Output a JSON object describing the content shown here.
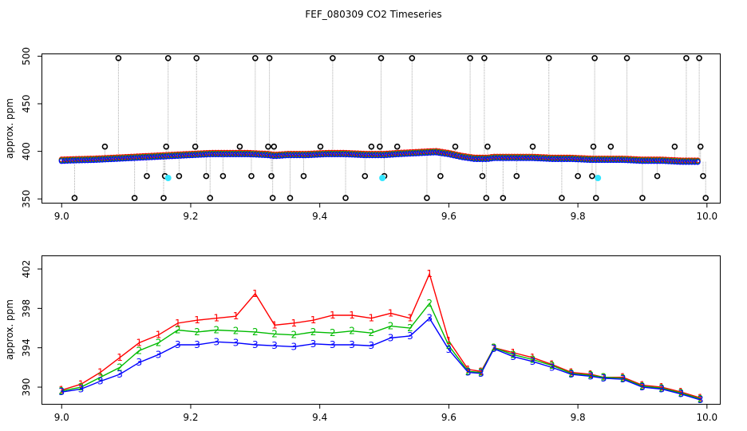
{
  "title": "FEF_080309  CO2 Timeseries",
  "colors": {
    "series1": "#ff0000",
    "series2": "#00bb00",
    "series3": "#0000ff",
    "flag": "#000000",
    "cyan": "#33e6ff",
    "connector": "#aaaaaa"
  },
  "chart_data": [
    {
      "type": "scatter",
      "xlabel": "",
      "ylabel": "approx. ppm",
      "xlim": [
        8.97,
        10.02
      ],
      "ylim": [
        346,
        502
      ],
      "xticks": [
        9.0,
        9.2,
        9.4,
        9.6,
        9.8,
        10.0
      ],
      "xtick_labels": [
        "9.0",
        "9.2",
        "9.4",
        "9.6",
        "9.8",
        "10.0"
      ],
      "yticks": [
        350,
        400,
        450,
        500
      ],
      "ytick_labels": [
        "350",
        "400",
        "450",
        "500"
      ],
      "grid": false,
      "series": [
        {
          "style": "baseline",
          "x": [
            9.0,
            9.02,
            9.05,
            9.08,
            9.11,
            9.14,
            9.17,
            9.2,
            9.23,
            9.26,
            9.29,
            9.32,
            9.33,
            9.35,
            9.38,
            9.41,
            9.44,
            9.47,
            9.49,
            9.5,
            9.52,
            9.55,
            9.58,
            9.6,
            9.62,
            9.64,
            9.66,
            9.67,
            9.7,
            9.73,
            9.76,
            9.79,
            9.82,
            9.84,
            9.87,
            9.9,
            9.93,
            9.96,
            9.99
          ],
          "y": [
            390,
            390.5,
            391,
            392,
            393,
            394,
            395,
            396,
            397,
            397,
            397,
            396,
            395,
            396,
            396,
            397,
            397,
            396,
            396,
            396,
            397,
            398,
            399,
            397,
            394,
            392,
            392,
            393,
            393,
            393,
            392,
            392,
            391,
            391,
            391,
            390,
            390,
            389,
            389
          ]
        },
        {
          "style": "flag",
          "x": [
            9.02,
            9.067,
            9.088,
            9.113,
            9.132,
            9.158,
            9.16,
            9.162,
            9.165,
            9.182,
            9.207,
            9.209,
            9.224,
            9.23,
            9.25,
            9.276,
            9.294,
            9.3,
            9.32,
            9.322,
            9.325,
            9.327,
            9.329,
            9.354,
            9.375,
            9.401,
            9.42,
            9.44,
            9.47,
            9.48,
            9.493,
            9.495,
            9.5,
            9.52,
            9.543,
            9.566,
            9.587,
            9.61,
            9.633,
            9.652,
            9.655,
            9.658,
            9.66,
            9.684,
            9.705,
            9.73,
            9.755,
            9.775,
            9.8,
            9.822,
            9.824,
            9.826,
            9.828,
            9.851,
            9.876,
            9.9,
            9.923,
            9.95,
            9.968,
            9.988,
            9.99,
            9.994,
            9.998
          ],
          "y": [
            351,
            405,
            498,
            351,
            374,
            351,
            374,
            405,
            498,
            374,
            405,
            498,
            374,
            351,
            374,
            405,
            374,
            498,
            405,
            498,
            374,
            351,
            405,
            351,
            374,
            405,
            498,
            351,
            374,
            405,
            405,
            498,
            374,
            405,
            498,
            351,
            374,
            405,
            498,
            374,
            498,
            351,
            405,
            351,
            374,
            405,
            498,
            351,
            374,
            374,
            405,
            498,
            351,
            405,
            498,
            351,
            374,
            405,
            498,
            498,
            405,
            374,
            351
          ]
        },
        {
          "style": "cyan",
          "x": [
            9.165,
            9.497,
            9.831
          ],
          "y": [
            372,
            372,
            372
          ]
        }
      ]
    },
    {
      "type": "line",
      "xlabel": "",
      "ylabel": "approx. ppm",
      "xlim": [
        8.97,
        10.02
      ],
      "ylim": [
        388.3,
        403.3
      ],
      "xticks": [
        9.0,
        9.2,
        9.4,
        9.6,
        9.8,
        10.0
      ],
      "xtick_labels": [
        "9.0",
        "9.2",
        "9.4",
        "9.6",
        "9.8",
        "10.0"
      ],
      "yticks": [
        390,
        394,
        398,
        402
      ],
      "ytick_labels": [
        "390",
        "394",
        "398",
        "402"
      ],
      "grid": false,
      "x": [
        9.0,
        9.03,
        9.06,
        9.09,
        9.12,
        9.15,
        9.18,
        9.21,
        9.24,
        9.27,
        9.3,
        9.33,
        9.36,
        9.39,
        9.42,
        9.45,
        9.48,
        9.51,
        9.54,
        9.57,
        9.6,
        9.63,
        9.65,
        9.67,
        9.7,
        9.73,
        9.76,
        9.79,
        9.82,
        9.84,
        9.87,
        9.9,
        9.93,
        9.96,
        9.99
      ],
      "series": [
        {
          "marker": "1",
          "values": [
            389.7,
            390.3,
            391.5,
            393.0,
            394.5,
            395.3,
            396.5,
            396.8,
            397.0,
            397.2,
            399.5,
            396.3,
            396.5,
            396.8,
            397.3,
            397.3,
            397.0,
            397.5,
            397.0,
            401.5,
            394.7,
            391.8,
            391.6,
            394.0,
            393.5,
            393.0,
            392.3,
            391.5,
            391.3,
            391.0,
            391.0,
            390.2,
            390.0,
            389.5,
            388.9
          ]
        },
        {
          "marker": "2",
          "values": [
            389.6,
            390.0,
            391.0,
            392.0,
            393.7,
            394.5,
            395.8,
            395.6,
            395.8,
            395.7,
            395.6,
            395.4,
            395.3,
            395.6,
            395.5,
            395.7,
            395.5,
            396.2,
            396.0,
            398.5,
            394.2,
            391.6,
            391.5,
            394.0,
            393.3,
            392.8,
            392.2,
            391.4,
            391.2,
            391.0,
            390.9,
            390.1,
            389.9,
            389.4,
            388.8
          ]
        },
        {
          "marker": "3",
          "values": [
            389.5,
            389.8,
            390.6,
            391.3,
            392.5,
            393.3,
            394.3,
            394.3,
            394.6,
            394.5,
            394.3,
            394.2,
            394.1,
            394.4,
            394.3,
            394.3,
            394.2,
            395.0,
            395.2,
            397.0,
            393.8,
            391.5,
            391.4,
            393.9,
            393.1,
            392.6,
            392.0,
            391.3,
            391.1,
            390.9,
            390.8,
            390.0,
            389.8,
            389.3,
            388.7
          ]
        }
      ]
    }
  ]
}
